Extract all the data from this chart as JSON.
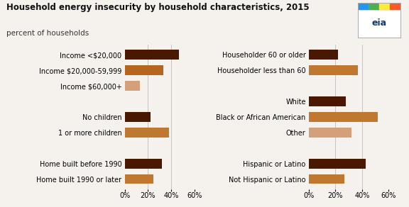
{
  "title": "Household energy insecurity by household characteristics, 2015",
  "subtitle": "percent of households",
  "left_categories": [
    "Income <$20,000",
    "Income $20,000-59,999",
    "Income $60,000+",
    "",
    "No children",
    "1 or more children",
    "",
    "Home built before 1990",
    "Home built 1990 or later"
  ],
  "left_values": [
    47,
    33,
    13,
    0,
    22,
    38,
    0,
    32,
    25
  ],
  "left_colors": [
    "#4a1800",
    "#b5651d",
    "#d4a07a",
    "#f5f2ee",
    "#4a1800",
    "#c07830",
    "#f5f2ee",
    "#4a1800",
    "#c07830"
  ],
  "right_categories": [
    "Householder 60 or older",
    "Householder less than 60",
    "",
    "White",
    "Black or African American",
    "Other",
    "",
    "Hispanic or Latino",
    "Not Hispanic or Latino"
  ],
  "right_values": [
    22,
    37,
    0,
    28,
    52,
    32,
    0,
    43,
    27
  ],
  "right_colors": [
    "#4a1800",
    "#c07830",
    "#f5f2ee",
    "#4a1800",
    "#c07830",
    "#d4a07a",
    "#f5f2ee",
    "#4a1800",
    "#c07830"
  ],
  "xlim": 60,
  "xticks": [
    0,
    20,
    40,
    60
  ],
  "xticklabels": [
    "0%",
    "20%",
    "40%",
    "60%"
  ],
  "background_color": "#f5f2ee",
  "bar_height": 0.6,
  "title_fontsize": 8.5,
  "subtitle_fontsize": 7.5,
  "label_fontsize": 7.0,
  "tick_fontsize": 7.0
}
